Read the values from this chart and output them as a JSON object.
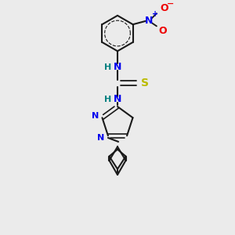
{
  "bg_color": "#ebebeb",
  "bond_color": "#1a1a1a",
  "bond_width": 1.5,
  "N_color": "#0000ee",
  "O_color": "#ee0000",
  "S_color": "#bbbb00",
  "H_color": "#008080",
  "figsize": [
    3.0,
    3.0
  ],
  "dpi": 100,
  "xlim": [
    -1.6,
    1.6
  ],
  "ylim": [
    -3.2,
    2.2
  ]
}
